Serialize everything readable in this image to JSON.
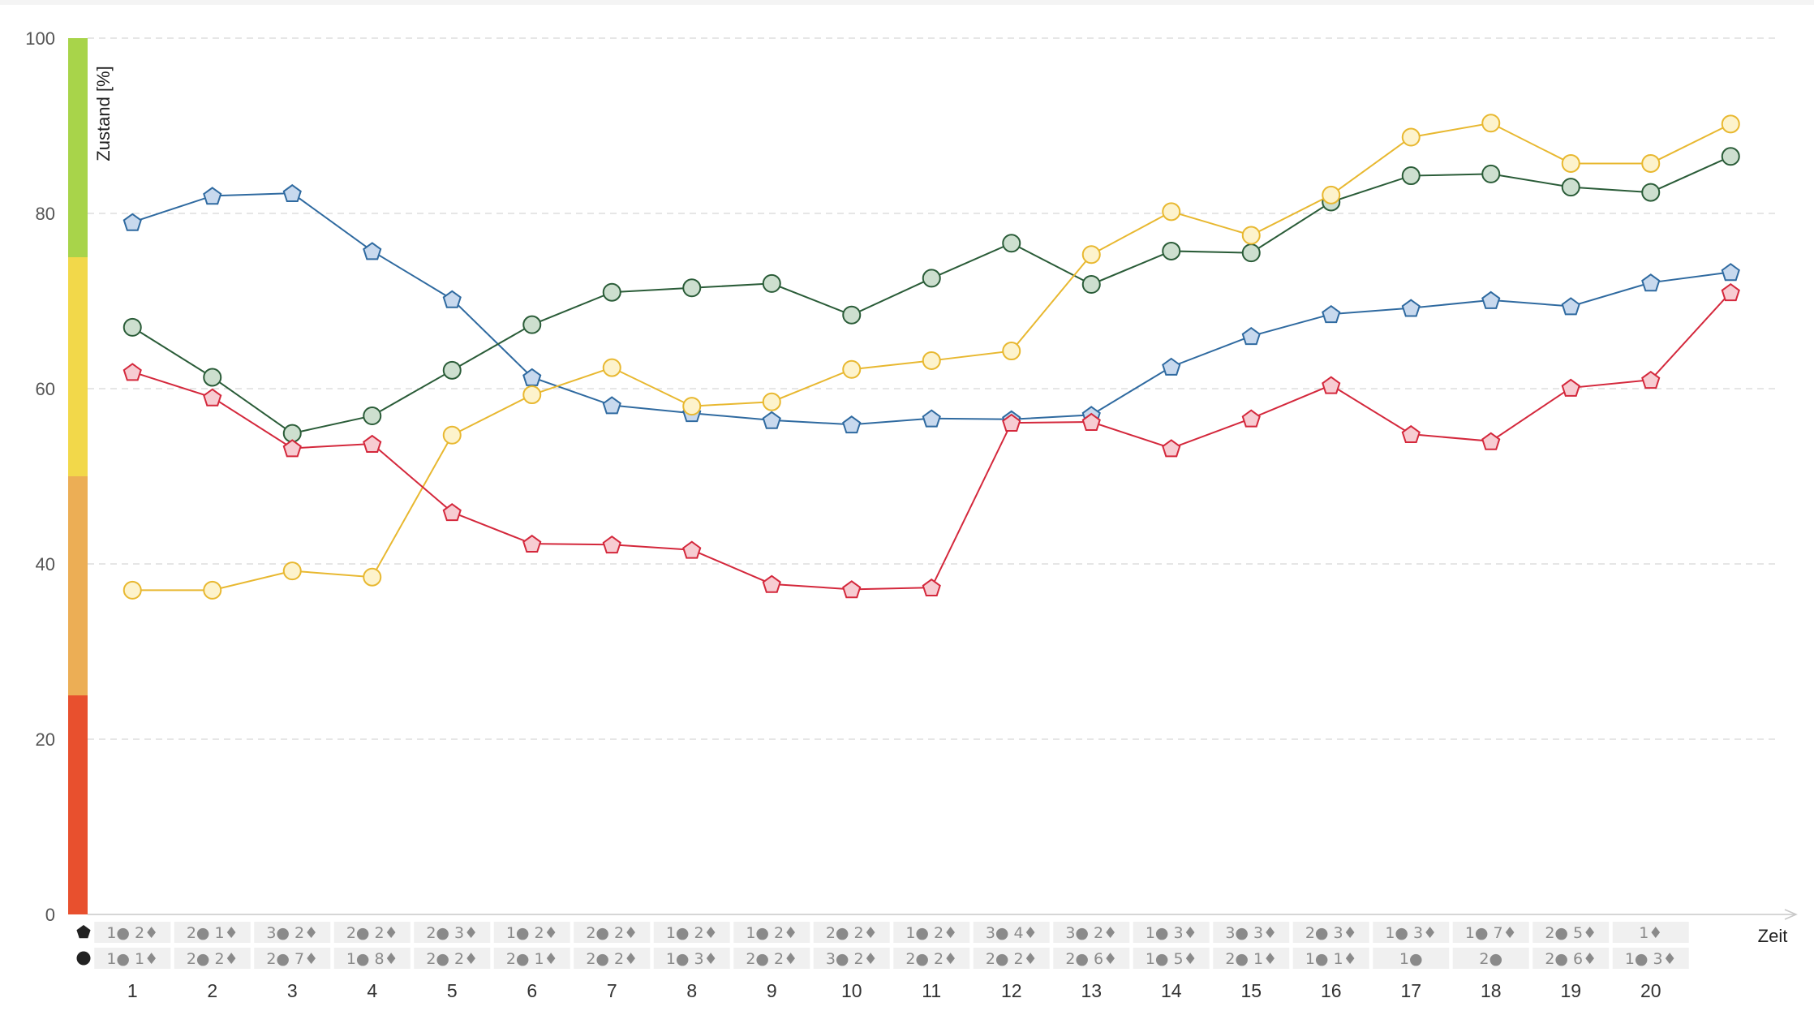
{
  "chart_data": {
    "type": "line",
    "ylabel": "Zustand [%]",
    "xlabel": "Zeit",
    "ylim": [
      0,
      100
    ],
    "yticks": [
      "0",
      "20",
      "40",
      "60",
      "80",
      "100"
    ],
    "grid": true,
    "categories": [
      "1",
      "2",
      "3",
      "4",
      "5",
      "6",
      "7",
      "8",
      "9",
      "10",
      "11",
      "12",
      "13",
      "14",
      "15",
      "16",
      "17",
      "18",
      "19",
      "20"
    ],
    "x": [
      0.5,
      1.5,
      2.5,
      3.5,
      4.5,
      5.5,
      6.5,
      7.5,
      8.5,
      9.5,
      10.5,
      11.5,
      12.5,
      13.5,
      14.5,
      15.5,
      16.5,
      17.5,
      18.5,
      19.5,
      20.5
    ],
    "condition_bands": [
      {
        "from": 0,
        "to": 25,
        "color": "#e8502e"
      },
      {
        "from": 25,
        "to": 50,
        "color": "#ecae55"
      },
      {
        "from": 50,
        "to": 75,
        "color": "#f2d84a"
      },
      {
        "from": 75,
        "to": 100,
        "color": "#a8d44a"
      }
    ],
    "series": [
      {
        "marker": "pentagon",
        "color": "#2f6aa0",
        "fill": "#c8d9ee",
        "values": [
          79,
          82,
          82.3,
          75.7,
          70.2,
          61.3,
          58.1,
          57.2,
          56.4,
          55.9,
          56.6,
          56.5,
          57,
          62.5,
          66,
          68.5,
          69.2,
          70.1,
          69.4,
          72.1,
          73.3
        ]
      },
      {
        "marker": "circle",
        "color": "#2a5c38",
        "fill": "#cddfcf",
        "values": [
          67,
          61.3,
          54.9,
          56.9,
          62.1,
          67.3,
          71,
          71.5,
          72,
          68.4,
          72.6,
          76.6,
          71.9,
          75.7,
          75.5,
          81.3,
          84.3,
          84.5,
          83,
          82.4,
          86.5
        ]
      },
      {
        "marker": "circle",
        "color": "#e8b830",
        "fill": "#fdf3cc",
        "values": [
          37,
          37,
          39.2,
          38.5,
          54.7,
          59.3,
          62.4,
          58,
          58.5,
          62.2,
          63.2,
          64.3,
          75.3,
          80.2,
          77.5,
          82.1,
          88.7,
          90.3,
          85.7,
          85.7,
          90.2
        ]
      },
      {
        "marker": "pentagon",
        "color": "#d4283c",
        "fill": "#f7ccd2",
        "values": [
          61.9,
          59,
          53.2,
          53.7,
          45.9,
          42.3,
          42.2,
          41.6,
          37.7,
          37.1,
          37.3,
          56.1,
          56.2,
          53.2,
          56.6,
          60.4,
          54.8,
          54,
          60.1,
          61,
          71
        ]
      }
    ],
    "row_markers": [
      "pentagon",
      "circle"
    ],
    "table": {
      "rows": [
        [
          "1● 2♦",
          "2● 1♦",
          "3● 2♦",
          "2● 2♦",
          "2● 3♦",
          "1● 2♦",
          "2● 2♦",
          "1● 2♦",
          "1● 2♦",
          "2● 2♦",
          "1● 2♦",
          "3● 4♦",
          "3● 2♦",
          "1● 3♦",
          "3● 3♦",
          "2● 3♦",
          "1● 3♦",
          "1● 7♦",
          "2● 5♦",
          "1♦"
        ],
        [
          "1● 1♦",
          "2● 2♦",
          "2● 7♦",
          "1● 8♦",
          "2● 2♦",
          "2● 1♦",
          "2● 2♦",
          "1● 3♦",
          "2● 2♦",
          "3● 2♦",
          "2● 2♦",
          "2● 2♦",
          "2● 6♦",
          "1● 5♦",
          "2● 1♦",
          "1● 1♦",
          "1●",
          "2●",
          "2● 6♦",
          "1● 3♦"
        ]
      ]
    }
  }
}
